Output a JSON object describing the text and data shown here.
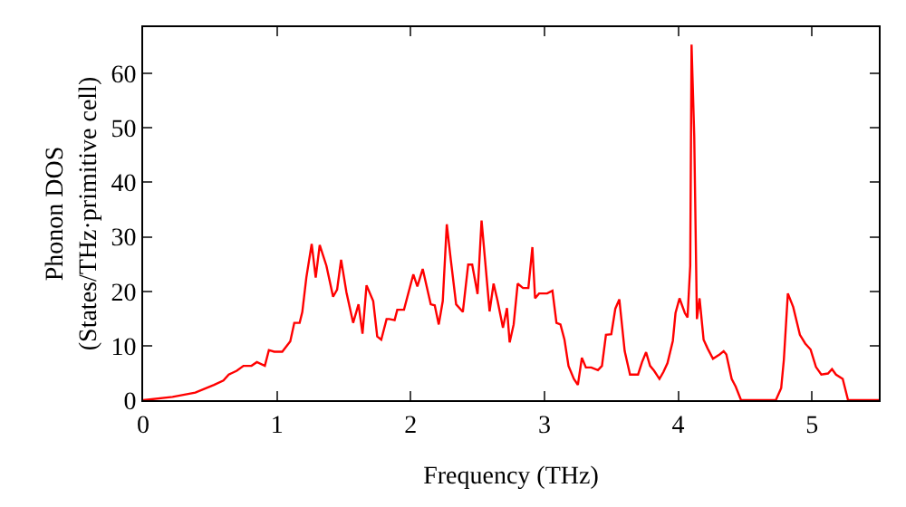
{
  "chart_data": {
    "type": "line",
    "xlabel": "Frequency (THz)",
    "ylabel": "Phonon DOS\n(States/THz·primitive cell)",
    "x": [
      0,
      0.22,
      0.39,
      0.53,
      0.6,
      0.64,
      0.7,
      0.75,
      0.81,
      0.85,
      0.91,
      0.94,
      0.98,
      1.04,
      1.1,
      1.13,
      1.17,
      1.19,
      1.22,
      1.26,
      1.29,
      1.32,
      1.37,
      1.42,
      1.45,
      1.48,
      1.52,
      1.57,
      1.61,
      1.64,
      1.67,
      1.72,
      1.75,
      1.78,
      1.82,
      1.84,
      1.88,
      1.9,
      1.95,
      2.02,
      2.05,
      2.09,
      2.15,
      2.18,
      2.21,
      2.24,
      2.27,
      2.3,
      2.34,
      2.39,
      2.43,
      2.46,
      2.5,
      2.53,
      2.56,
      2.59,
      2.62,
      2.65,
      2.69,
      2.72,
      2.74,
      2.77,
      2.8,
      2.84,
      2.88,
      2.91,
      2.93,
      2.96,
      3.02,
      3.06,
      3.09,
      3.12,
      3.15,
      3.18,
      3.22,
      3.25,
      3.28,
      3.31,
      3.35,
      3.4,
      3.43,
      3.46,
      3.5,
      3.53,
      3.56,
      3.6,
      3.64,
      3.7,
      3.73,
      3.76,
      3.79,
      3.82,
      3.86,
      3.89,
      3.92,
      3.96,
      3.98,
      4.01,
      4.05,
      4.07,
      4.09,
      4.1,
      4.12,
      4.14,
      4.16,
      4.19,
      4.22,
      4.26,
      4.31,
      4.34,
      4.36,
      4.4,
      4.43,
      4.47,
      4.73,
      4.77,
      4.79,
      4.82,
      4.86,
      4.91,
      4.95,
      4.99,
      5.03,
      5.07,
      5.12,
      5.15,
      5.18,
      5.23,
      5.27,
      5.5
    ],
    "series": [
      {
        "color": "#ff0000",
        "values": [
          0,
          0.6,
          1.4,
          2.8,
          3.6,
          4.7,
          5.4,
          6.3,
          6.3,
          7.0,
          6.3,
          9.2,
          8.9,
          8.9,
          10.8,
          14.2,
          14.2,
          16.2,
          22.5,
          28.7,
          22.5,
          28.5,
          24.7,
          19.0,
          20.3,
          25.8,
          19.8,
          14.2,
          17.6,
          12.2,
          21.1,
          18.2,
          11.7,
          11.1,
          14.9,
          14.9,
          14.7,
          16.6,
          16.6,
          23.1,
          20.9,
          24.1,
          17.6,
          17.4,
          13.9,
          18.2,
          32.3,
          25.8,
          17.6,
          16.2,
          24.9,
          24.9,
          19.5,
          33.0,
          24.7,
          16.3,
          21.4,
          18.2,
          13.3,
          16.9,
          10.6,
          13.9,
          21.4,
          20.6,
          20.6,
          28.1,
          18.7,
          19.6,
          19.6,
          20.1,
          14.2,
          13.9,
          11.1,
          6.3,
          3.9,
          2.8,
          7.8,
          6.0,
          6.0,
          5.5,
          6.3,
          12.0,
          12.1,
          16.8,
          18.5,
          9.0,
          4.7,
          4.7,
          7.0,
          8.8,
          6.3,
          5.4,
          3.9,
          5.2,
          6.8,
          10.9,
          16.0,
          18.7,
          16.0,
          15.2,
          24.7,
          65.3,
          48.5,
          14.9,
          18.7,
          11.1,
          9.5,
          7.6,
          8.4,
          9.0,
          8.4,
          3.9,
          2.5,
          0,
          0,
          2.2,
          7.4,
          19.6,
          17.1,
          12.0,
          10.4,
          9.3,
          6.1,
          4.7,
          4.9,
          5.7,
          4.7,
          3.9,
          0,
          0
        ]
      }
    ],
    "xlim": [
      0,
      5.5
    ],
    "ylim": [
      0,
      68.5
    ],
    "xticks": [
      0,
      1,
      2,
      3,
      4,
      5
    ],
    "yticks": [
      0,
      10,
      20,
      30,
      40,
      50,
      60
    ],
    "marker": "none",
    "line_style": "solid"
  }
}
